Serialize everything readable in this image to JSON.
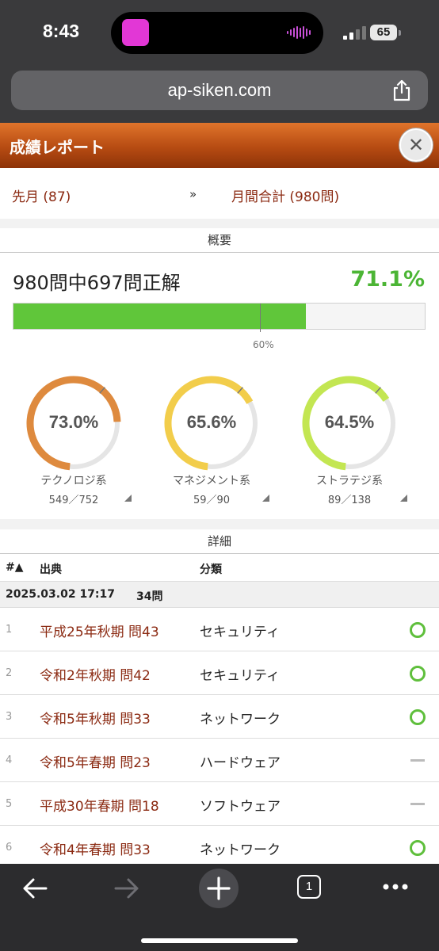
{
  "status_bar": {
    "time": "8:43",
    "battery": "65"
  },
  "browser": {
    "url": "ap-siken.com"
  },
  "report": {
    "title": "成績レポート",
    "close_label": "✕",
    "nav": {
      "prev": "先月 (87)",
      "arrow": "»",
      "current": "月間合計 (980問)"
    }
  },
  "summary": {
    "section_title": "概要",
    "text": "980問中697問正解",
    "percent": "71.1%",
    "progress_fraction": 0.711,
    "target_fraction": 0.6,
    "target_label": "60%",
    "colors": {
      "accent_green": "#4cb535",
      "bar_fill": "#60c63a"
    }
  },
  "gauges": [
    {
      "value": "73.0%",
      "fraction": 0.73,
      "label": "テクノロジ系",
      "count": "549／752",
      "color": "#de8a3e"
    },
    {
      "value": "65.6%",
      "fraction": 0.656,
      "label": "マネジメント系",
      "count": "59／90",
      "color": "#f2cd4b"
    },
    {
      "value": "64.5%",
      "fraction": 0.645,
      "label": "ストラテジ系",
      "count": "89／138",
      "color": "#c3e652"
    }
  ],
  "details": {
    "section_title": "詳細",
    "columns": {
      "num": "#▲",
      "source": "出典",
      "category": "分類"
    },
    "group": {
      "datetime": "2025.03.02 17:17",
      "count": "34問"
    },
    "rows": [
      {
        "num": "1",
        "source": "平成25年秋期 問43",
        "category": "セキュリティ",
        "result": "correct"
      },
      {
        "num": "2",
        "source": "令和2年秋期 問42",
        "category": "セキュリティ",
        "result": "correct"
      },
      {
        "num": "3",
        "source": "令和5年秋期 問33",
        "category": "ネットワーク",
        "result": "correct"
      },
      {
        "num": "4",
        "source": "令和5年春期 問23",
        "category": "ハードウェア",
        "result": "unanswered"
      },
      {
        "num": "5",
        "source": "平成30年春期 問18",
        "category": "ソフトウェア",
        "result": "unanswered"
      },
      {
        "num": "6",
        "source": "令和4年春期 問33",
        "category": "ネットワーク",
        "result": "correct"
      }
    ]
  },
  "toolbar": {
    "tab_count": "1"
  }
}
